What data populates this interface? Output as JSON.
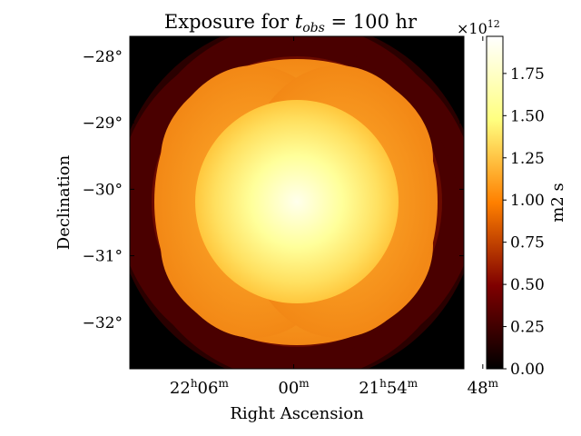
{
  "chart_data": {
    "type": "heatmap",
    "title_prefix": "Exposure for ",
    "title_symbol": "t",
    "title_subscript": "obs",
    "title_suffix": " = 100 hr",
    "xlabel": "Right Ascension",
    "ylabel": "Declination",
    "x_ticks": [
      {
        "hours": "22",
        "minutes": "06"
      },
      {
        "hours": "",
        "minutes": "00"
      },
      {
        "hours": "21",
        "minutes": "54"
      },
      {
        "hours": "",
        "minutes": "48"
      }
    ],
    "x_tick_values_deg": [
      331.5,
      330.0,
      328.5,
      327.0
    ],
    "xlim_deg": [
      332.6,
      327.3
    ],
    "y_ticks": [
      "−28°",
      "−29°",
      "−30°",
      "−31°",
      "−32°"
    ],
    "y_tick_values_deg": [
      -28,
      -29,
      -30,
      -31,
      -32
    ],
    "ylim_deg": [
      -32.7,
      -27.7
    ],
    "colorbar": {
      "label": "m2 s",
      "multiplier": "×10",
      "exponent": "12",
      "ticks": [
        "0.00",
        "0.25",
        "0.50",
        "0.75",
        "1.00",
        "1.25",
        "1.50",
        "1.75"
      ],
      "tick_values": [
        0.0,
        0.25,
        0.5,
        0.75,
        1.0,
        1.25,
        1.5,
        1.75
      ],
      "vmin": 0.0,
      "vmax": 1.97,
      "colormap": "afmhot",
      "colormap_stops": [
        "#000000",
        "#7f0000",
        "#ff8000",
        "#ffff80",
        "#ffffff"
      ]
    },
    "exposure_levels": [
      {
        "region": "outermost disc",
        "value": 0.25
      },
      {
        "region": "four overlapping pointing discs",
        "value": 0.5
      },
      {
        "region": "lens overlaps",
        "value": 0.9
      },
      {
        "region": "central core peak",
        "value": 1.95
      }
    ]
  }
}
